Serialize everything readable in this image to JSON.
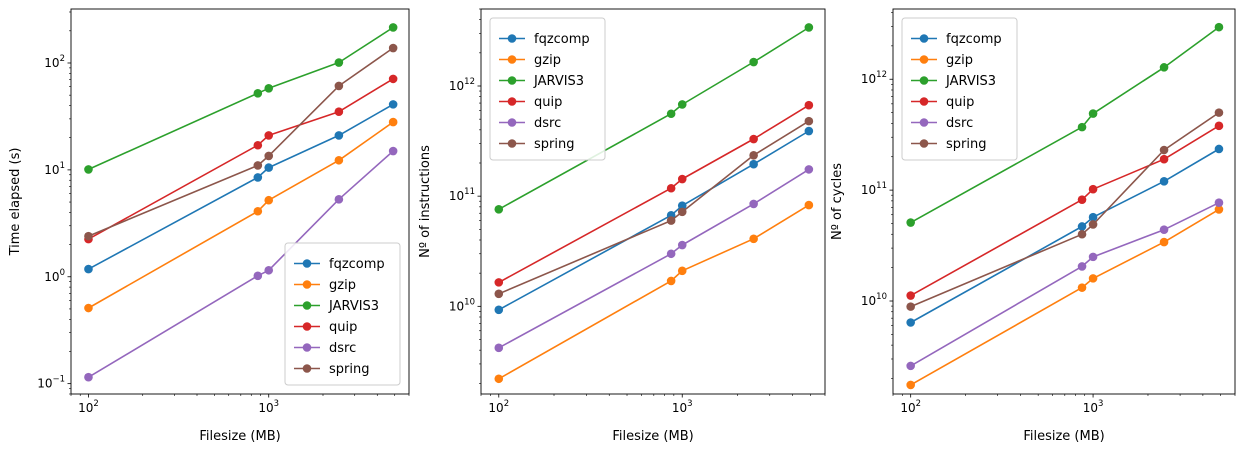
{
  "chart_data": [
    {
      "type": "line",
      "title": "",
      "xlabel": "Filesize (MB)",
      "ylabel": "Time elapsed (s)",
      "xscale": "log",
      "yscale": "log",
      "xlim": [
        80,
        6000
      ],
      "ylim": [
        0.08,
        320
      ],
      "x_ticks": [
        {
          "v": 100,
          "b": "10",
          "e": "2"
        },
        {
          "v": 1000,
          "b": "10",
          "e": "3"
        }
      ],
      "y_ticks": [
        {
          "v": 0.1,
          "b": "10",
          "e": "−1"
        },
        {
          "v": 1,
          "b": "10",
          "e": "0"
        },
        {
          "v": 10,
          "b": "10",
          "e": "1"
        },
        {
          "v": 100,
          "b": "10",
          "e": "2"
        }
      ],
      "x": [
        100,
        870,
        1000,
        2450,
        4900
      ],
      "legend_position": "lower right",
      "series": [
        {
          "name": "fqzcomp",
          "color": "#1f77b4",
          "values": [
            1.18,
            8.5,
            10.5,
            21,
            41
          ]
        },
        {
          "name": "gzip",
          "color": "#ff7f0e",
          "values": [
            0.51,
            4.1,
            5.2,
            12.3,
            28
          ]
        },
        {
          "name": "JARVIS3",
          "color": "#2ca02c",
          "values": [
            10.1,
            52,
            58,
            101,
            215
          ]
        },
        {
          "name": "quip",
          "color": "#d62728",
          "values": [
            2.25,
            17,
            21,
            35,
            71
          ]
        },
        {
          "name": "dsrc",
          "color": "#9467bd",
          "values": [
            0.115,
            1.02,
            1.15,
            5.3,
            15
          ]
        },
        {
          "name": "spring",
          "color": "#8c564b",
          "values": [
            2.4,
            11,
            13.5,
            61,
            138
          ]
        }
      ]
    },
    {
      "type": "line",
      "title": "",
      "xlabel": "Filesize (MB)",
      "ylabel": "Nº of instructions",
      "xscale": "log",
      "yscale": "log",
      "xlim": [
        80,
        6000
      ],
      "ylim": [
        1600000000.0,
        5000000000000.0
      ],
      "x_ticks": [
        {
          "v": 100,
          "b": "10",
          "e": "2"
        },
        {
          "v": 1000,
          "b": "10",
          "e": "3"
        }
      ],
      "y_ticks": [
        {
          "v": 10000000000.0,
          "b": "10",
          "e": "10"
        },
        {
          "v": 100000000000.0,
          "b": "10",
          "e": "11"
        },
        {
          "v": 1000000000000.0,
          "b": "10",
          "e": "12"
        }
      ],
      "x": [
        100,
        870,
        1000,
        2450,
        4900
      ],
      "legend_position": "upper left",
      "series": [
        {
          "name": "fqzcomp",
          "color": "#1f77b4",
          "values": [
            9300000000.0,
            67000000000.0,
            82000000000.0,
            195000000000.0,
            390000000000.0
          ]
        },
        {
          "name": "gzip",
          "color": "#ff7f0e",
          "values": [
            2200000000.0,
            17000000000.0,
            21000000000.0,
            41000000000.0,
            83000000000.0
          ]
        },
        {
          "name": "JARVIS3",
          "color": "#2ca02c",
          "values": [
            76000000000.0,
            560000000000.0,
            680000000000.0,
            1650000000000.0,
            3400000000000.0
          ]
        },
        {
          "name": "quip",
          "color": "#d62728",
          "values": [
            16500000000.0,
            118000000000.0,
            143000000000.0,
            330000000000.0,
            670000000000.0
          ]
        },
        {
          "name": "dsrc",
          "color": "#9467bd",
          "values": [
            4200000000.0,
            30000000000.0,
            36000000000.0,
            85000000000.0,
            175000000000.0
          ]
        },
        {
          "name": "spring",
          "color": "#8c564b",
          "values": [
            13000000000.0,
            60000000000.0,
            72000000000.0,
            235000000000.0,
            480000000000.0
          ]
        }
      ]
    },
    {
      "type": "line",
      "title": "",
      "xlabel": "Filesize (MB)",
      "ylabel": "Nº of cycles",
      "xscale": "log",
      "yscale": "log",
      "xlim": [
        80,
        6000
      ],
      "ylim": [
        1450000000.0,
        4300000000000.0
      ],
      "x_ticks": [
        {
          "v": 100,
          "b": "10",
          "e": "2"
        },
        {
          "v": 1000,
          "b": "10",
          "e": "3"
        }
      ],
      "y_ticks": [
        {
          "v": 10000000000.0,
          "b": "10",
          "e": "10"
        },
        {
          "v": 100000000000.0,
          "b": "10",
          "e": "11"
        },
        {
          "v": 1000000000000.0,
          "b": "10",
          "e": "12"
        }
      ],
      "x": [
        100,
        870,
        1000,
        2450,
        4900
      ],
      "legend_position": "upper left",
      "series": [
        {
          "name": "fqzcomp",
          "color": "#1f77b4",
          "values": [
            6400000000.0,
            47000000000.0,
            57000000000.0,
            120000000000.0,
            235000000000.0
          ]
        },
        {
          "name": "gzip",
          "color": "#ff7f0e",
          "values": [
            1750000000.0,
            13200000000.0,
            16000000000.0,
            34000000000.0,
            67000000000.0
          ]
        },
        {
          "name": "JARVIS3",
          "color": "#2ca02c",
          "values": [
            51000000000.0,
            370000000000.0,
            490000000000.0,
            1280000000000.0,
            2950000000000.0
          ]
        },
        {
          "name": "quip",
          "color": "#d62728",
          "values": [
            11200000000.0,
            82000000000.0,
            102000000000.0,
            190000000000.0,
            380000000000.0
          ]
        },
        {
          "name": "dsrc",
          "color": "#9467bd",
          "values": [
            2600000000.0,
            20500000000.0,
            25000000000.0,
            44000000000.0,
            77000000000.0
          ]
        },
        {
          "name": "spring",
          "color": "#8c564b",
          "values": [
            8900000000.0,
            40000000000.0,
            49000000000.0,
            230000000000.0,
            500000000000.0
          ]
        }
      ]
    }
  ]
}
